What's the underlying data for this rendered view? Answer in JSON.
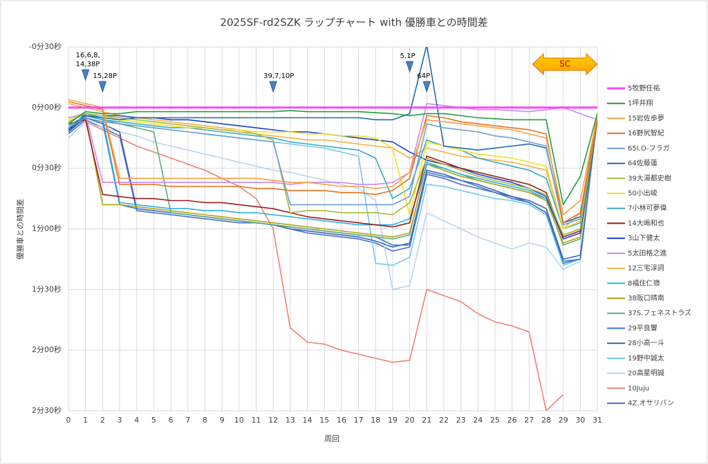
{
  "chart_data": {
    "type": "line",
    "title": "2025SF-rd2SZK ラップチャート with 優勝車との時間差",
    "x_label": "周回",
    "y_label": "優勝車との時間差",
    "x": [
      0,
      1,
      2,
      3,
      4,
      5,
      6,
      7,
      8,
      9,
      10,
      11,
      12,
      13,
      14,
      15,
      16,
      17,
      18,
      19,
      20,
      21,
      22,
      23,
      24,
      25,
      26,
      27,
      28,
      29,
      30,
      31
    ],
    "xlim": [
      0,
      31
    ],
    "xticks": [
      0,
      1,
      2,
      3,
      4,
      5,
      6,
      7,
      8,
      9,
      10,
      11,
      12,
      13,
      14,
      15,
      16,
      17,
      18,
      19,
      20,
      21,
      22,
      23,
      24,
      25,
      26,
      27,
      28,
      29,
      30,
      31
    ],
    "ylim": [
      -30,
      150
    ],
    "y_inverted": true,
    "yticks": [
      {
        "value": -30,
        "label": "-0分30秒"
      },
      {
        "value": 0,
        "label": "0分00秒"
      },
      {
        "value": 30,
        "label": "0分30秒"
      },
      {
        "value": 60,
        "label": "1分00秒"
      },
      {
        "value": 90,
        "label": "1分30秒"
      },
      {
        "value": 120,
        "label": "2分00秒"
      },
      {
        "value": 150,
        "label": "2分30秒"
      }
    ],
    "grid": true,
    "legend": "right",
    "annotations": [
      {
        "lines": [
          "16,6,8,",
          "14,38P"
        ],
        "x": 1
      },
      {
        "lines": [
          "15,28P"
        ],
        "x": 2
      },
      {
        "lines": [
          "39,7,10P"
        ],
        "x": 12
      },
      {
        "lines": [
          "5,1P"
        ],
        "x": 20
      },
      {
        "lines": [
          "64P"
        ],
        "x": 21
      }
    ],
    "sc": {
      "label": "SC",
      "from": 27.2,
      "to": 31
    },
    "series": [
      {
        "name": "5牧野任祐",
        "color": "#ff44ff",
        "values": [
          0,
          0,
          0,
          0,
          0,
          0,
          0,
          0,
          0,
          0,
          0,
          0,
          0,
          0,
          0,
          0,
          0,
          0,
          0,
          0,
          0,
          0,
          0,
          0,
          0,
          0,
          0,
          0,
          0,
          0,
          0,
          0
        ]
      },
      {
        "name": "1坪井翔",
        "color": "#1e9e3e",
        "values": [
          8,
          2,
          3,
          3,
          2,
          2,
          2,
          2,
          2,
          2,
          2,
          2,
          2,
          1.5,
          2,
          2,
          2,
          2,
          2.5,
          3,
          4,
          3,
          3,
          4,
          5,
          5.5,
          6,
          6,
          6,
          48,
          34,
          3
        ]
      },
      {
        "name": "15岩佐歩夢",
        "color": "#f7a040",
        "values": [
          -4,
          -2,
          0,
          35,
          35,
          35,
          35,
          35,
          35,
          35,
          35,
          35,
          36,
          37,
          37,
          38,
          39,
          39,
          40,
          39,
          32,
          6,
          7,
          8,
          9,
          10,
          11,
          13,
          15,
          53,
          46,
          4
        ]
      },
      {
        "name": "16野尻智紀",
        "color": "#e8711e",
        "values": [
          -3,
          -1,
          1,
          38,
          38,
          38,
          39,
          39,
          39,
          39,
          39,
          40,
          40,
          41,
          41,
          41,
          42,
          42,
          43,
          41,
          35,
          4,
          5,
          7,
          8,
          9,
          10,
          11,
          13,
          57,
          52,
          5
        ]
      },
      {
        "name": "65I.O-フラガ",
        "color": "#6a9fd8",
        "values": [
          10,
          5,
          7,
          8,
          9,
          10,
          11,
          12,
          13,
          14,
          15,
          16,
          17,
          48,
          48,
          48,
          48,
          48,
          48,
          48,
          44,
          8,
          10,
          11,
          12,
          14,
          15,
          17,
          19,
          58,
          55,
          4
        ]
      },
      {
        "name": "64佐藤蓮",
        "color": "#1d6aa8",
        "values": [
          12,
          4,
          5,
          6,
          5,
          5,
          5,
          5,
          5,
          5,
          5,
          5,
          5,
          5,
          5,
          5,
          5,
          5,
          6,
          6,
          3,
          -31,
          19,
          20,
          21,
          20,
          19,
          18,
          20,
          57,
          54,
          3
        ]
      },
      {
        "name": "39大湯都史樹",
        "color": "#a8b83a",
        "values": [
          7,
          3,
          4,
          5,
          6,
          7,
          8,
          9,
          10,
          11,
          12,
          13,
          16,
          52,
          51,
          51,
          52,
          52,
          52,
          53,
          47,
          25,
          28,
          31,
          34,
          36,
          38,
          40,
          43,
          63,
          60,
          5
        ]
      },
      {
        "name": "50小出峻",
        "color": "#f0e020",
        "values": [
          6,
          3,
          4,
          6,
          7,
          8,
          9,
          10,
          10,
          11,
          11,
          12,
          12,
          12,
          13,
          13,
          14,
          14,
          15,
          20,
          53,
          17,
          19,
          21,
          23,
          24,
          25,
          27,
          29,
          60,
          56,
          4
        ]
      },
      {
        "name": "7小林可夢偉",
        "color": "#36a9c8",
        "values": [
          9,
          4,
          6,
          7,
          8,
          9,
          10,
          10,
          11,
          12,
          13,
          14,
          15,
          17,
          18,
          19,
          20,
          21,
          25,
          45,
          40,
          16,
          19,
          21,
          25,
          27,
          29,
          31,
          35,
          60,
          57,
          4
        ]
      },
      {
        "name": "14大嶋和也",
        "color": "#9a1a1a",
        "values": [
          8,
          6,
          43,
          44,
          45,
          45,
          46,
          46,
          47,
          47,
          48,
          49,
          50,
          52,
          54,
          55,
          56,
          57,
          58,
          59,
          57,
          24,
          27,
          30,
          32,
          34,
          36,
          38,
          42,
          64,
          61,
          6
        ]
      },
      {
        "name": "3山下健太",
        "color": "#1a3fd0",
        "values": [
          11,
          3,
          4,
          4,
          5,
          5,
          6,
          6,
          7,
          8,
          9,
          10,
          11,
          12,
          12,
          13,
          14,
          15,
          16,
          17,
          22,
          26,
          28,
          30,
          33,
          35,
          37,
          40,
          44,
          65,
          62,
          6
        ]
      },
      {
        "name": "5太田格之進",
        "color": "#cc88ee",
        "values": [
          5,
          3,
          37,
          37,
          37,
          37,
          37,
          37,
          37,
          37,
          37,
          37,
          37,
          38,
          37,
          37,
          37,
          38,
          38,
          37,
          32,
          -2,
          -1,
          0,
          1,
          1,
          1.5,
          2,
          1,
          0,
          3,
          6
        ]
      },
      {
        "name": "12三宅淳詞",
        "color": "#f5b040",
        "values": [
          -2,
          0,
          2,
          4,
          5,
          6,
          7,
          8,
          9,
          10,
          11,
          13,
          14,
          15,
          16,
          16,
          17,
          18,
          19,
          20,
          25,
          20,
          22,
          24,
          25,
          26,
          27,
          29,
          31,
          60,
          52,
          5
        ]
      },
      {
        "name": "8福住仁嶺",
        "color": "#2ab0e8",
        "values": [
          7,
          3,
          5,
          47,
          48,
          49,
          50,
          50,
          51,
          51,
          52,
          52,
          53,
          54,
          55,
          56,
          57,
          58,
          58,
          58,
          55,
          28,
          30,
          33,
          35,
          37,
          39,
          41,
          45,
          63,
          60,
          5
        ]
      },
      {
        "name": "38阪口晴南",
        "color": "#b8a010",
        "values": [
          10,
          4,
          48,
          48,
          49,
          50,
          51,
          52,
          53,
          54,
          55,
          56,
          57,
          58,
          59,
          60,
          61,
          62,
          63,
          64,
          62,
          28,
          31,
          34,
          36,
          38,
          40,
          42,
          46,
          67,
          64,
          5
        ]
      },
      {
        "name": "37S.フェネストラズ",
        "color": "#5aae7a",
        "values": [
          10,
          4,
          6,
          8,
          10,
          12,
          52,
          53,
          54,
          55,
          56,
          57,
          58,
          59,
          60,
          61,
          62,
          63,
          64,
          65,
          63,
          27,
          30,
          33,
          36,
          38,
          40,
          42,
          45,
          68,
          65,
          5
        ]
      },
      {
        "name": "29平良響",
        "color": "#3a78c8",
        "values": [
          12,
          5,
          7,
          48,
          50,
          51,
          52,
          53,
          54,
          55,
          56,
          57,
          58,
          59,
          60,
          61,
          62,
          63,
          64,
          68,
          68,
          32,
          34,
          36,
          39,
          42,
          45,
          47,
          52,
          76,
          75,
          4
        ]
      },
      {
        "name": "28小高一斗",
        "color": "#3a60b0",
        "values": [
          11,
          5,
          8,
          12,
          50,
          51,
          52,
          53,
          54,
          55,
          56,
          57,
          58,
          60,
          61,
          62,
          63,
          64,
          66,
          69,
          67,
          31,
          33,
          36,
          38,
          41,
          44,
          46,
          50,
          75,
          73,
          5
        ]
      },
      {
        "name": "19野中誠太",
        "color": "#70c8f0",
        "values": [
          5,
          3,
          6,
          8,
          9,
          10,
          11,
          12,
          13,
          14,
          15,
          16,
          17,
          18,
          19,
          20,
          22,
          24,
          77,
          78,
          74,
          38,
          39,
          41,
          43,
          45,
          46,
          48,
          53,
          78,
          75,
          5
        ]
      },
      {
        "name": "20高星明誠",
        "color": "#b8d4ee",
        "values": [
          15,
          7,
          10,
          12,
          14,
          17,
          19,
          21,
          23,
          25,
          27,
          29,
          31,
          32,
          34,
          36,
          38,
          40,
          46,
          90,
          88,
          52,
          56,
          60,
          64,
          67,
          70,
          67,
          69,
          80,
          76,
          5
        ]
      },
      {
        "name": "10Juju",
        "color": "#f08070",
        "values": [
          15,
          7,
          11,
          15,
          19,
          22,
          25,
          28,
          31,
          35,
          39,
          45,
          60,
          109,
          116,
          117,
          120,
          122,
          124,
          126,
          125,
          90,
          93,
          96,
          102,
          106,
          108,
          111,
          150,
          142,
          null,
          null
        ]
      },
      {
        "name": "4Z.オサリバン",
        "color": "#4a68d8",
        "values": [
          13,
          6,
          10,
          14,
          51,
          52,
          53,
          54,
          55,
          56,
          57,
          57,
          58,
          60,
          62,
          63,
          64,
          65,
          67,
          71,
          69,
          33,
          35,
          38,
          40,
          42,
          44,
          47,
          52,
          77,
          75,
          5
        ]
      }
    ]
  }
}
